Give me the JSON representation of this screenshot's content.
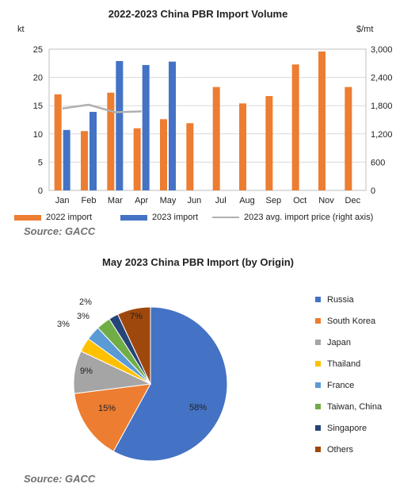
{
  "chart_data": [
    {
      "type": "bar",
      "title": "2022-2023  China PBR Import Volume",
      "ylabel": "kt",
      "y2label": "$/mt",
      "ylim": [
        0,
        25
      ],
      "y2lim": [
        0,
        3000
      ],
      "yticks": [
        0,
        5,
        10,
        15,
        20,
        25
      ],
      "y2ticks": [
        "0",
        "600",
        "1,200",
        "1,800",
        "2,400",
        "3,000"
      ],
      "categories": [
        "Jan",
        "Feb",
        "Mar",
        "Apr",
        "May",
        "Jun",
        "Jul",
        "Aug",
        "Sep",
        "Oct",
        "Nov",
        "Dec"
      ],
      "series": [
        {
          "name": "2022 import",
          "color": "#ed7d31",
          "values": [
            17.0,
            10.5,
            17.3,
            11.0,
            12.6,
            11.9,
            18.3,
            15.4,
            16.7,
            22.3,
            24.6,
            18.3
          ]
        },
        {
          "name": "2023 import",
          "color": "#4472c4",
          "values": [
            10.7,
            13.9,
            22.9,
            22.2,
            22.8,
            null,
            null,
            null,
            null,
            null,
            null,
            null
          ]
        },
        {
          "name": "2023 avg. import price (right axis)",
          "color": "#b0b0b0",
          "axis": "right",
          "kind": "line",
          "values": [
            1740,
            1820,
            1660,
            1680,
            null,
            null,
            null,
            null,
            null,
            null,
            null,
            null
          ]
        }
      ],
      "source": "Source: GACC"
    },
    {
      "type": "pie",
      "title": "May 2023  China PBR Import  (by Origin)",
      "slices": [
        {
          "label": "Russia",
          "value": 58,
          "text": "58%",
          "color": "#4472c4"
        },
        {
          "label": "South Korea",
          "value": 15,
          "text": "15%",
          "color": "#ed7d31"
        },
        {
          "label": "Japan",
          "value": 9,
          "text": "9%",
          "color": "#a5a5a5"
        },
        {
          "label": "Thailand",
          "value": 3,
          "text": "3%",
          "color": "#ffc000"
        },
        {
          "label": "France",
          "value": 3,
          "text": "3%",
          "color": "#5b9bd5"
        },
        {
          "label": "Taiwan, China",
          "value": 3,
          "text": "3%",
          "color": "#70ad47"
        },
        {
          "label": "Singapore",
          "value": 2,
          "text": "2%",
          "color": "#264478"
        },
        {
          "label": "Others",
          "value": 7,
          "text": "7%",
          "color": "#9e480e"
        }
      ],
      "source": "Source: GACC"
    }
  ]
}
